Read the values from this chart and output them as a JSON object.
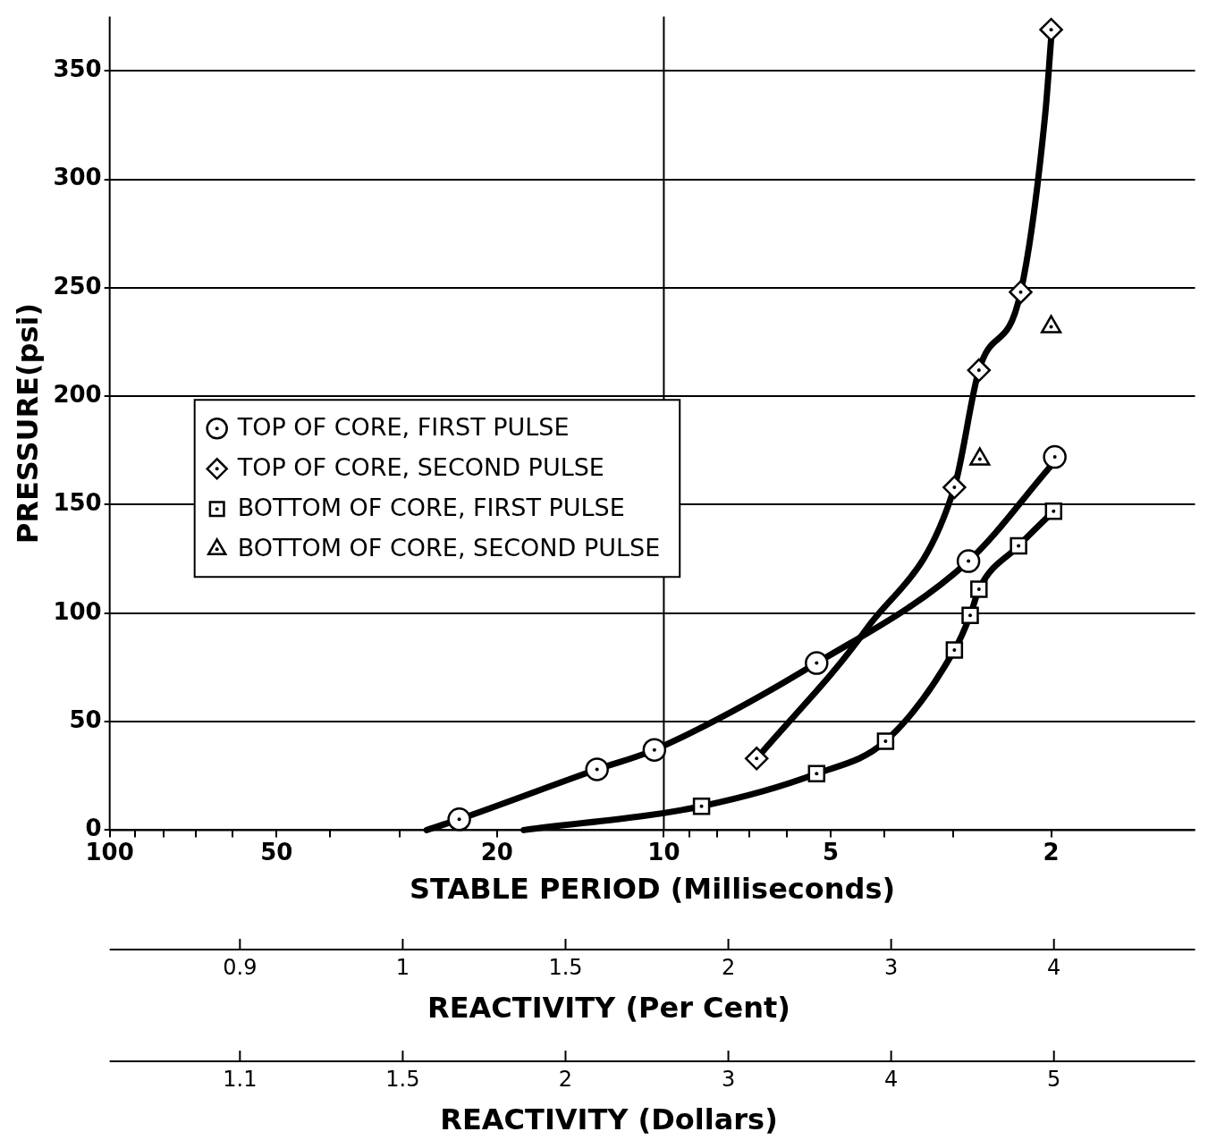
{
  "chart_data": {
    "type": "scatter",
    "xlabel": "STABLE PERIOD (Milliseconds)",
    "ylabel": "PRESSURE(psi)",
    "log": "x",
    "xlim": [
      100,
      1.1
    ],
    "xticks": [
      100,
      {
        "value": 90,
        "label": null
      },
      {
        "value": 80,
        "label": null
      },
      {
        "value": 70,
        "label": null
      },
      {
        "value": 60,
        "label": null
      },
      50,
      {
        "value": 40,
        "label": null
      },
      {
        "value": 30,
        "label": null
      },
      20,
      10,
      {
        "value": 9,
        "label": null
      },
      {
        "value": 8,
        "label": null
      },
      {
        "value": 7,
        "label": null
      },
      {
        "value": 6,
        "label": null
      },
      5,
      {
        "value": 4,
        "label": null
      },
      {
        "value": 3,
        "label": null
      },
      2
    ],
    "ylim": [
      0,
      375
    ],
    "yticks": [
      0,
      50,
      100,
      150,
      200,
      250,
      300,
      350
    ],
    "annotations": [
      "0.9",
      "1",
      "1.5",
      "2",
      "3",
      "4",
      "REACTIVITY (Per Cent)",
      "1.1",
      "1.5",
      "2",
      "3",
      "4",
      "5",
      "REACTIVITY (Dollars)"
    ],
    "grid": "y",
    "ref_lines": [
      {
        "axis": "x",
        "value": 10
      }
    ],
    "legend": "left",
    "series": [
      {
        "name": "TOP OF CORE, FIRST PULSE",
        "color": "#000000",
        "marker": "circle",
        "x": [
          23.4,
          13.2,
          10.4,
          5.3,
          2.82,
          1.97
        ],
        "values": [
          5,
          28,
          37,
          77,
          124,
          172
        ]
      },
      {
        "name": "TOP OF CORE, SECOND PULSE",
        "color": "#000000",
        "marker": "diamond",
        "x": [
          6.8,
          2.99,
          2.7,
          2.27,
          2.0
        ],
        "values": [
          33,
          158,
          212,
          248,
          369
        ]
      },
      {
        "name": "BOTTOM OF CORE, FIRST PULSE",
        "color": "#000000",
        "marker": "square",
        "x": [
          8.55,
          5.3,
          3.98,
          2.99,
          2.8,
          2.7,
          2.29,
          1.98
        ],
        "values": [
          11,
          26,
          41,
          83,
          99,
          111,
          131,
          147
        ]
      },
      {
        "name": "BOTTOM OF CORE, SECOND PULSE",
        "color": "#000000",
        "marker": "triangle",
        "x": [
          2.69,
          2.0
        ],
        "values": [
          171,
          232
        ]
      },
      {
        "type": "line",
        "color": "#000000",
        "marker": "none",
        "x": [
          26.8,
          23.4,
          13.2,
          10.4,
          5.3,
          2.82,
          2.0
        ],
        "values": [
          0,
          5,
          28,
          37,
          77,
          124,
          168
        ]
      },
      {
        "type": "line",
        "color": "#000000",
        "marker": "none",
        "x": [
          6.8,
          4.3,
          2.99,
          2.7,
          2.27,
          2.05,
          2.0
        ],
        "values": [
          33,
          93,
          158,
          212,
          248,
          330,
          365
        ]
      },
      {
        "type": "line",
        "color": "#000000",
        "marker": "none",
        "x": [
          17.9,
          8.55,
          5.3,
          3.98,
          2.99,
          2.8,
          2.7,
          2.29,
          1.98
        ],
        "values": [
          0,
          11,
          26,
          41,
          83,
          99,
          111,
          131,
          147
        ]
      }
    ]
  }
}
